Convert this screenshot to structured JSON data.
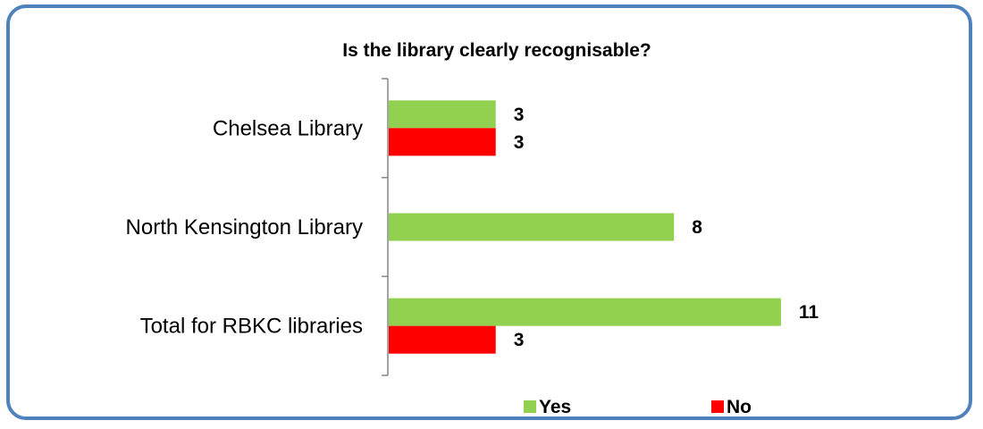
{
  "chart_data": {
    "type": "bar",
    "orientation": "horizontal",
    "title": "Is the library clearly recognisable?",
    "categories": [
      "Chelsea Library",
      "North Kensington Library",
      "Total for RBKC libraries"
    ],
    "series": [
      {
        "name": "Yes",
        "color": "#92d050",
        "values": [
          3,
          8,
          11
        ]
      },
      {
        "name": "No",
        "color": "#ff0000",
        "values": [
          3,
          null,
          3
        ]
      }
    ],
    "xlim": [
      0,
      12
    ],
    "grid": false,
    "data_labels": true,
    "legend": "bottom"
  }
}
